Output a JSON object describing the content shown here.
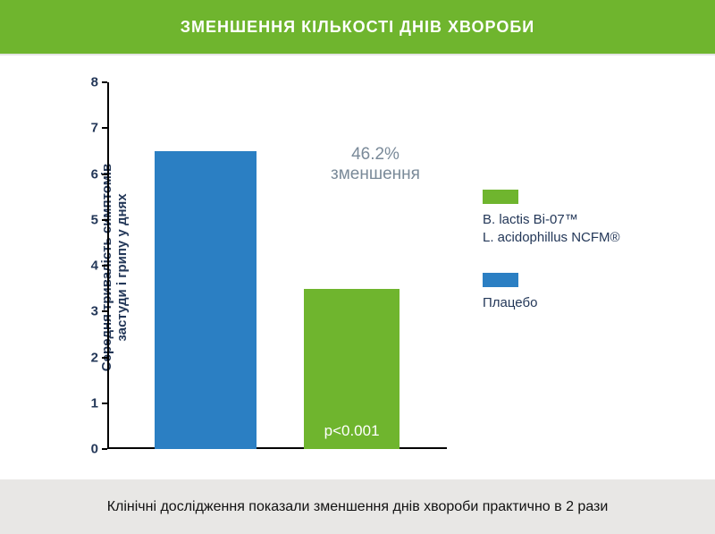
{
  "header": {
    "title": "ЗМЕНШЕННЯ КІЛЬКОСТІ ДНІВ ХВОРОБИ",
    "background_color": "#6fb52e",
    "text_color": "#ffffff",
    "font_size_pt": 18
  },
  "divider_color": "#e5e5e5",
  "chart": {
    "type": "bar",
    "background_color": "#ffffff",
    "y_axis_label": "Середня тривалість симптомів\nзастуди і грипу у днях",
    "y_axis_label_color": "#233758",
    "y_axis_label_fontsize": 15,
    "ylim": [
      0,
      8
    ],
    "ytick_step": 1,
    "tick_color": "#233758",
    "tick_fontsize": 15,
    "axis_color": "#000000",
    "bars": [
      {
        "value": 6.5,
        "color": "#2b7fc3",
        "width_frac": 0.3,
        "x_frac": 0.14,
        "label": ""
      },
      {
        "value": 3.5,
        "color": "#6fb52e",
        "width_frac": 0.28,
        "x_frac": 0.58,
        "label": "p<0.001"
      }
    ],
    "bar_label_color": "#ffffff",
    "bar_label_fontsize": 17,
    "reduction_text_line1": "46.2%",
    "reduction_text_line2": "зменшення",
    "reduction_color": "#7a8a99",
    "reduction_fontsize": 19
  },
  "legend": {
    "items": [
      {
        "swatch_color": "#6fb52e",
        "label": "B. lactis Bi-07™\nL. acidophillus NCFM®"
      },
      {
        "swatch_color": "#2b7fc3",
        "label": "Плацебо"
      }
    ],
    "text_color": "#233758",
    "fontsize": 15
  },
  "footer": {
    "text": "Клінічні дослідження показали зменшення днів хвороби практично в 2 рази",
    "background_color": "#e8e7e5",
    "text_color": "#111111",
    "font_size_pt": 16
  }
}
